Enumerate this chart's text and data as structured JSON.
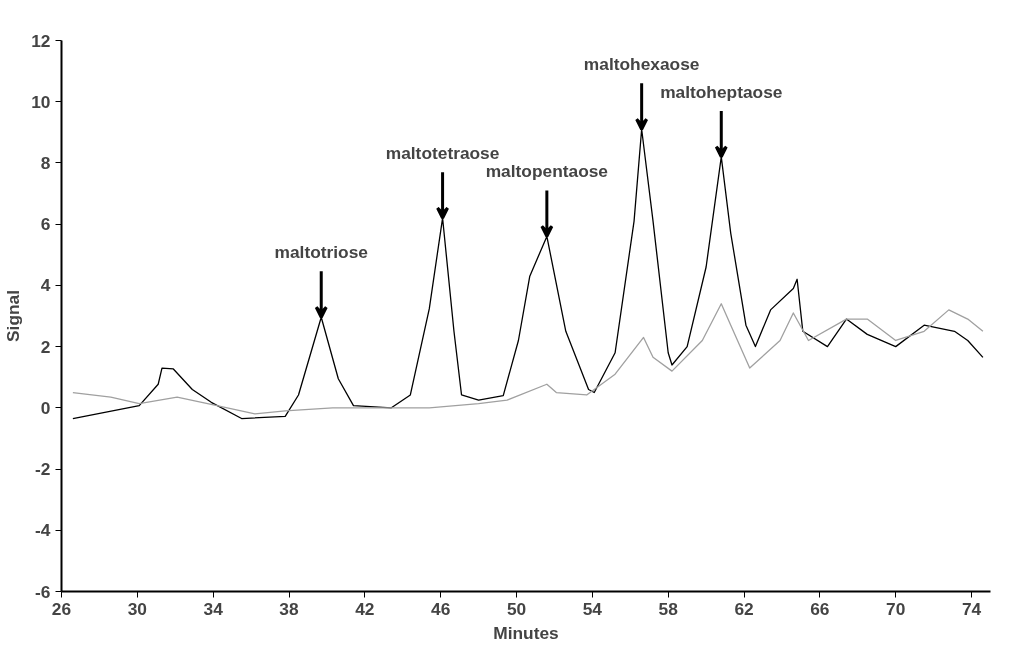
{
  "chart_data": {
    "type": "line",
    "xlabel": "Minutes",
    "ylabel": "Signal",
    "xlim": [
      26,
      75
    ],
    "ylim": [
      -6,
      12
    ],
    "xticks": [
      26,
      30,
      34,
      38,
      42,
      46,
      50,
      54,
      58,
      62,
      66,
      70,
      74
    ],
    "yticks": [
      -6,
      -4,
      -2,
      0,
      2,
      4,
      6,
      8,
      10,
      12
    ],
    "grid": false,
    "marker": "none",
    "line_style": "solid",
    "series": [
      {
        "color": "#000000",
        "x": [
          26.6,
          30.1,
          31.1,
          31.3,
          31.9,
          32.9,
          33.9,
          35.5,
          37.8,
          38.5,
          39.7,
          40.6,
          41.4,
          43.4,
          44.4,
          45.4,
          46.1,
          46.7,
          47.1,
          48.0,
          49.3,
          50.1,
          50.7,
          51.6,
          52.6,
          53.8,
          54.1,
          55.2,
          56.2,
          56.6,
          57.2,
          58.0,
          58.2,
          59.0,
          60.0,
          60.8,
          61.3,
          62.1,
          62.6,
          63.4,
          64.6,
          64.8,
          65.1,
          66.4,
          67.4,
          68.5,
          70.0,
          71.5,
          73.1,
          73.8,
          74.6
        ],
        "values": [
          -0.35,
          0.07,
          0.77,
          1.3,
          1.27,
          0.6,
          0.18,
          -0.35,
          -0.28,
          0.42,
          2.96,
          0.95,
          0.07,
          0.0,
          0.42,
          3.24,
          6.2,
          2.5,
          0.42,
          0.25,
          0.4,
          2.2,
          4.3,
          5.6,
          2.5,
          0.6,
          0.5,
          1.8,
          6.1,
          9.1,
          6.1,
          1.8,
          1.4,
          2.0,
          4.6,
          8.2,
          5.7,
          2.7,
          2.0,
          3.2,
          3.9,
          4.2,
          2.5,
          2.0,
          2.9,
          2.4,
          2.0,
          2.7,
          2.5,
          2.2,
          1.65
        ]
      },
      {
        "color": "#a0a0a0",
        "x": [
          26.6,
          28.6,
          30.1,
          32.1,
          34.2,
          36.2,
          37.8,
          40.3,
          42.9,
          45.4,
          48.0,
          49.5,
          51.6,
          52.1,
          53.7,
          55.2,
          56.7,
          57.2,
          58.2,
          59.8,
          60.8,
          61.3,
          62.3,
          63.9,
          64.6,
          65.4,
          67.4,
          68.5,
          70.0,
          71.5,
          72.8,
          73.8,
          74.6
        ],
        "values": [
          0.5,
          0.35,
          0.14,
          0.35,
          0.07,
          -0.2,
          -0.1,
          0,
          0,
          0,
          0.14,
          0.25,
          0.77,
          0.5,
          0.42,
          1.1,
          2.3,
          1.65,
          1.2,
          2.2,
          3.4,
          2.7,
          1.3,
          2.2,
          3.1,
          2.2,
          2.9,
          2.9,
          2.2,
          2.5,
          3.2,
          2.9,
          2.5
        ]
      }
    ],
    "annotations": [
      {
        "text": "maltotriose",
        "x": 39.7,
        "y": 2.96
      },
      {
        "text": "maltotetraose",
        "x": 46.1,
        "y": 6.2
      },
      {
        "text": "maltopentaose",
        "x": 51.6,
        "y": 5.6
      },
      {
        "text": "maltohexaose",
        "x": 56.6,
        "y": 9.1
      },
      {
        "text": "maltoheptaose",
        "x": 60.8,
        "y": 8.2
      }
    ]
  }
}
